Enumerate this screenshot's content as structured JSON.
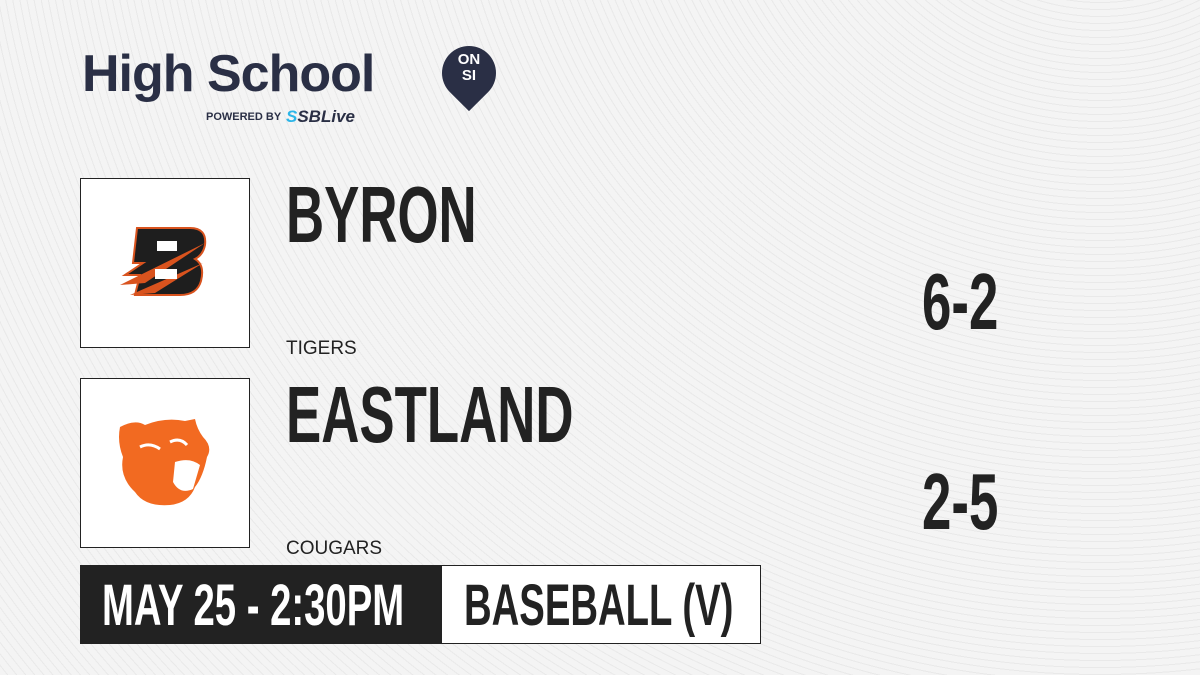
{
  "brand": {
    "title": "High School",
    "badge_line1": "ON",
    "badge_line2": "SI",
    "powered_by": "POWERED BY",
    "sponsor_prefix": "S",
    "sponsor": "SBLive"
  },
  "teams": [
    {
      "name": "BYRON",
      "mascot": "TIGERS",
      "record": "6-2",
      "logo_icon": "byron-b-logo",
      "color": "#d9531e"
    },
    {
      "name": "EASTLAND",
      "mascot": "COUGARS",
      "record": "2-5",
      "logo_icon": "cougar-logo",
      "color": "#f26a21"
    }
  ],
  "game": {
    "datetime": "MAY 25 - 2:30PM",
    "sport": "BASEBALL (V)"
  }
}
